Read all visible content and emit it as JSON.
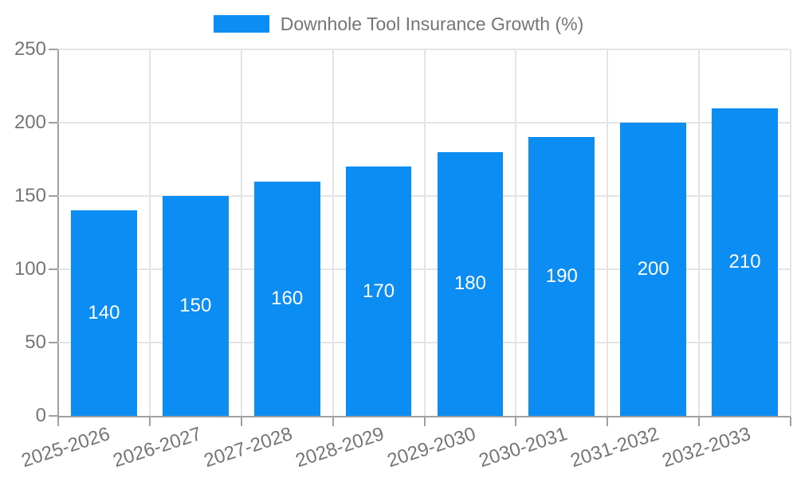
{
  "chart_data": {
    "type": "bar",
    "title": "",
    "legend": {
      "label": "Downhole Tool Insurance Growth (%)",
      "position": "top"
    },
    "categories": [
      "2025-2026",
      "2026-2027",
      "2027-2028",
      "2028-2029",
      "2029-2030",
      "2030-2031",
      "2031-2032",
      "2032-2033"
    ],
    "series": [
      {
        "name": "Downhole Tool Insurance Growth (%)",
        "values": [
          140,
          150,
          160,
          170,
          180,
          190,
          200,
          210
        ]
      }
    ],
    "value_labels": [
      "140",
      "150",
      "160",
      "170",
      "180",
      "190",
      "200",
      "210"
    ],
    "xlabel": "",
    "ylabel": "",
    "ylim": [
      0,
      250
    ],
    "yticks": [
      0,
      50,
      100,
      150,
      200,
      250
    ],
    "ytick_labels": [
      "0",
      "50",
      "100",
      "150",
      "200",
      "250"
    ],
    "grid": true,
    "x_label_rotation_deg": -18,
    "colors": {
      "bar": "#0B8DF3",
      "value_label": "#FFFFFF",
      "text": "#757575",
      "axis_line": "#A0A0A0",
      "gridline": "#E4E4E4",
      "background": "#FFFFFF"
    }
  }
}
